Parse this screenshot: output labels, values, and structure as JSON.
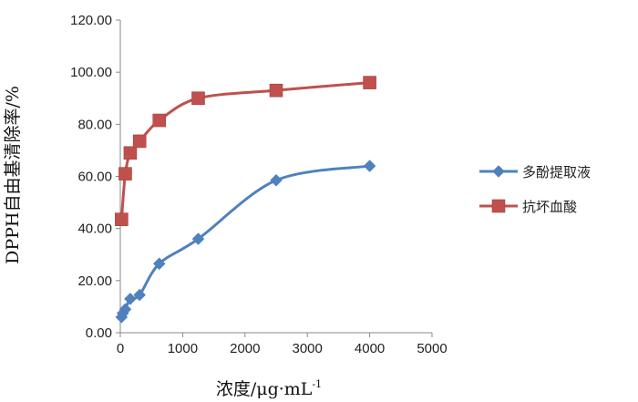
{
  "chart_data": {
    "type": "line",
    "xlabel": "浓度/μg·mL",
    "xlabel_sup": "-1",
    "ylabel": "DPPH自由基清除率/%",
    "xlim": [
      0,
      5000
    ],
    "ylim": [
      0,
      120
    ],
    "x_ticks": [
      "0",
      "1000",
      "2000",
      "3000",
      "4000",
      "5000"
    ],
    "y_ticks": [
      "0.00",
      "20.00",
      "40.00",
      "60.00",
      "80.00",
      "100.00",
      "120.00"
    ],
    "grid": false,
    "legend_position": "right",
    "series": [
      {
        "name": "多酚提取液",
        "color": "#4F81BD",
        "marker": "diamond",
        "x": [
          20,
          40,
          80,
          160,
          310,
          625,
          1250,
          2500,
          4000
        ],
        "y": [
          6.0,
          7.5,
          9.0,
          13.0,
          14.5,
          26.5,
          36.0,
          58.5,
          64.0
        ]
      },
      {
        "name": "抗坏血酸",
        "color": "#C0504D",
        "marker": "square",
        "x": [
          20,
          80,
          160,
          310,
          625,
          1250,
          2500,
          4000
        ],
        "y": [
          43.5,
          61.0,
          69.0,
          73.5,
          81.5,
          90.0,
          93.0,
          96.0
        ]
      }
    ]
  }
}
